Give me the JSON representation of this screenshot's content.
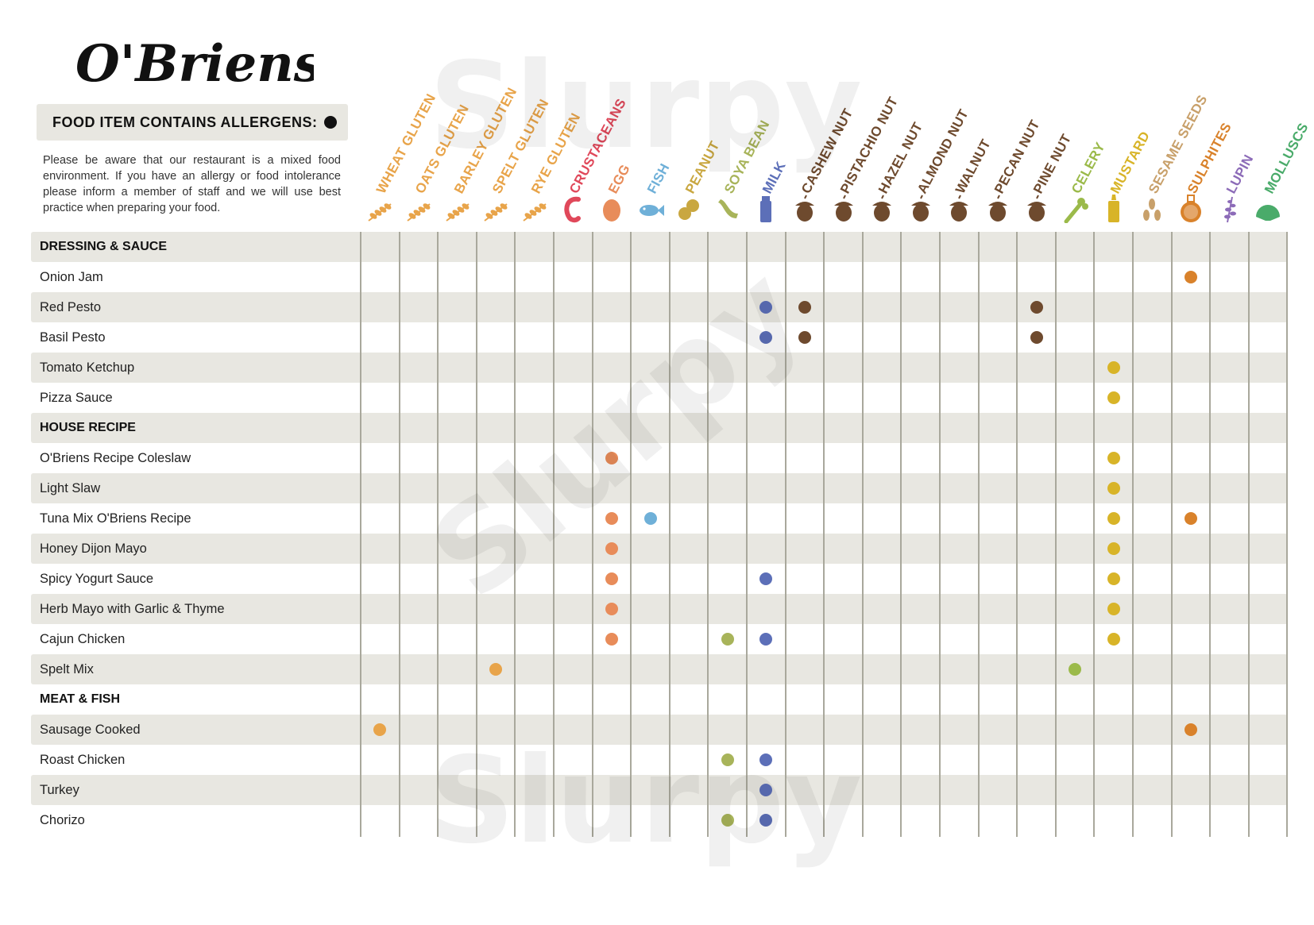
{
  "brand": {
    "name": "O'Briens"
  },
  "legend": {
    "text": "FOOD ITEM CONTAINS ALLERGENS:"
  },
  "notice": {
    "text": "Please be aware that our restaurant is a mixed food environment. If you have an allergy or food intolerance please inform a member of staff and we will use best practice when preparing your food."
  },
  "watermark": {
    "text": "Slurpy"
  },
  "allergens": [
    {
      "label": "WHEAT GLUTEN",
      "color": "#e8a44a",
      "icon": "wheat-icon"
    },
    {
      "label": "OATS GLUTEN",
      "color": "#e8a44a",
      "icon": "wheat-icon"
    },
    {
      "label": "BARLEY GLUTEN",
      "color": "#e8a44a",
      "icon": "wheat-icon"
    },
    {
      "label": "SPELT GLUTEN",
      "color": "#e8a44a",
      "icon": "wheat-icon"
    },
    {
      "label": "RYE GLUTEN",
      "color": "#e8a44a",
      "icon": "wheat-icon"
    },
    {
      "label": "CRUSTACEANS",
      "color": "#e0485a",
      "icon": "shrimp-icon"
    },
    {
      "label": "EGG",
      "color": "#e88c5a",
      "icon": "egg-icon"
    },
    {
      "label": "FISH",
      "color": "#6fb0d8",
      "icon": "fish-icon"
    },
    {
      "label": "PEANUT",
      "color": "#c9a740",
      "icon": "peanut-icon"
    },
    {
      "label": "SOYA BEAN",
      "color": "#a8b45a",
      "icon": "soybean-icon"
    },
    {
      "label": "MILK",
      "color": "#5c6fb8",
      "icon": "milk-bottle-icon"
    },
    {
      "label": "CASHEW NUT",
      "color": "#6e4a2e",
      "icon": "acorn-icon"
    },
    {
      "label": "PISTACHIO NUT",
      "color": "#6e4a2e",
      "icon": "acorn-icon"
    },
    {
      "label": "HAZEL NUT",
      "color": "#6e4a2e",
      "icon": "acorn-icon"
    },
    {
      "label": "ALMOND NUT",
      "color": "#6e4a2e",
      "icon": "acorn-icon"
    },
    {
      "label": "WALNUT",
      "color": "#6e4a2e",
      "icon": "acorn-icon"
    },
    {
      "label": "PECAN NUT",
      "color": "#6e4a2e",
      "icon": "acorn-icon"
    },
    {
      "label": "PINE NUT",
      "color": "#6e4a2e",
      "icon": "acorn-icon"
    },
    {
      "label": "CELERY",
      "color": "#9bba4a",
      "icon": "celery-icon"
    },
    {
      "label": "MUSTARD",
      "color": "#d8b428",
      "icon": "mustard-bottle-icon"
    },
    {
      "label": "SESAME SEEDS",
      "color": "#c8a06a",
      "icon": "sesame-icon"
    },
    {
      "label": "SULPHITES",
      "color": "#d9822b",
      "icon": "flask-icon"
    },
    {
      "label": "LUPIN",
      "color": "#8c6bb8",
      "icon": "lupin-icon"
    },
    {
      "label": "MOLLUSCS",
      "color": "#4aab6a",
      "icon": "shell-icon"
    }
  ],
  "rows": [
    {
      "type": "section",
      "label": "DRESSING & SAUCE",
      "marks": []
    },
    {
      "type": "item",
      "label": "Onion Jam",
      "marks": [
        21
      ]
    },
    {
      "type": "item",
      "label": "Red Pesto",
      "marks": [
        10,
        11,
        17
      ]
    },
    {
      "type": "item",
      "label": "Basil Pesto",
      "marks": [
        10,
        11,
        17
      ]
    },
    {
      "type": "item",
      "label": "Tomato Ketchup",
      "marks": [
        19
      ]
    },
    {
      "type": "item",
      "label": "Pizza Sauce",
      "marks": [
        19
      ]
    },
    {
      "type": "section",
      "label": "HOUSE RECIPE",
      "marks": []
    },
    {
      "type": "item",
      "label": "O'Briens Recipe Coleslaw",
      "marks": [
        6,
        19
      ]
    },
    {
      "type": "item",
      "label": "Light Slaw",
      "marks": [
        19
      ]
    },
    {
      "type": "item",
      "label": "Tuna Mix O'Briens Recipe",
      "marks": [
        6,
        7,
        19,
        21
      ]
    },
    {
      "type": "item",
      "label": "Honey Dijon Mayo",
      "marks": [
        6,
        19
      ]
    },
    {
      "type": "item",
      "label": "Spicy Yogurt Sauce",
      "marks": [
        6,
        10,
        19
      ]
    },
    {
      "type": "item",
      "label": "Herb Mayo with Garlic & Thyme",
      "marks": [
        6,
        19
      ]
    },
    {
      "type": "item",
      "label": "Cajun Chicken",
      "marks": [
        6,
        9,
        10,
        19
      ]
    },
    {
      "type": "item",
      "label": "Spelt Mix",
      "marks": [
        3,
        18
      ]
    },
    {
      "type": "section",
      "label": "MEAT & FISH",
      "marks": []
    },
    {
      "type": "item",
      "label": "Sausage Cooked",
      "marks": [
        0,
        21
      ]
    },
    {
      "type": "item",
      "label": "Roast Chicken",
      "marks": [
        9,
        10
      ]
    },
    {
      "type": "item",
      "label": "Turkey",
      "marks": [
        10
      ]
    },
    {
      "type": "item",
      "label": "Chorizo",
      "marks": [
        9,
        10
      ]
    }
  ]
}
